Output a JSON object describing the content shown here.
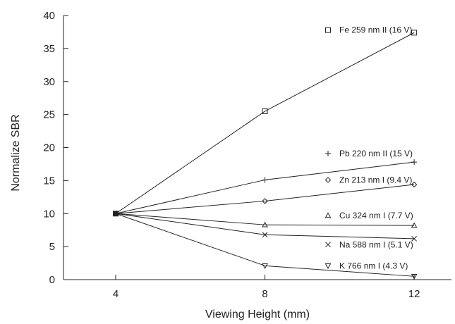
{
  "chart_data": {
    "type": "line",
    "xlabel": "Viewing Height (mm)",
    "ylabel": "Normalize SBR",
    "x": [
      4,
      8,
      12
    ],
    "xticks": [
      4,
      8,
      12
    ],
    "xlim": [
      2.6,
      13
    ],
    "ylim": [
      0,
      40
    ],
    "yticks": [
      0,
      5,
      10,
      15,
      20,
      25,
      30,
      35,
      40
    ],
    "grid": false,
    "legend": "inline labels at right end of each series",
    "series": [
      {
        "name": "Fe 259 nm II (16 V)",
        "marker": "square",
        "values": [
          10,
          25.5,
          37.4
        ],
        "legend_y": 37.8
      },
      {
        "name": "Pb 220 nm II (15 V)",
        "marker": "plus",
        "values": [
          10,
          15.1,
          17.8
        ],
        "legend_y": 19.1
      },
      {
        "name": "Zn 213 nm I (9.4 V)",
        "marker": "diamond",
        "values": [
          10,
          11.9,
          14.4
        ],
        "legend_y": 15.1
      },
      {
        "name": "Cu 324 nm I (7.7 V)",
        "marker": "triangle-up",
        "values": [
          10,
          8.3,
          8.2
        ],
        "legend_y": 9.7
      },
      {
        "name": "Na 588 nm I (5.1 V)",
        "marker": "x",
        "values": [
          10,
          6.8,
          6.2
        ],
        "legend_y": 5.3
      },
      {
        "name": "K 766 nm I (4.3 V)",
        "marker": "triangle-down",
        "values": [
          10,
          2.1,
          0.5
        ],
        "legend_y": 2.1
      }
    ]
  }
}
